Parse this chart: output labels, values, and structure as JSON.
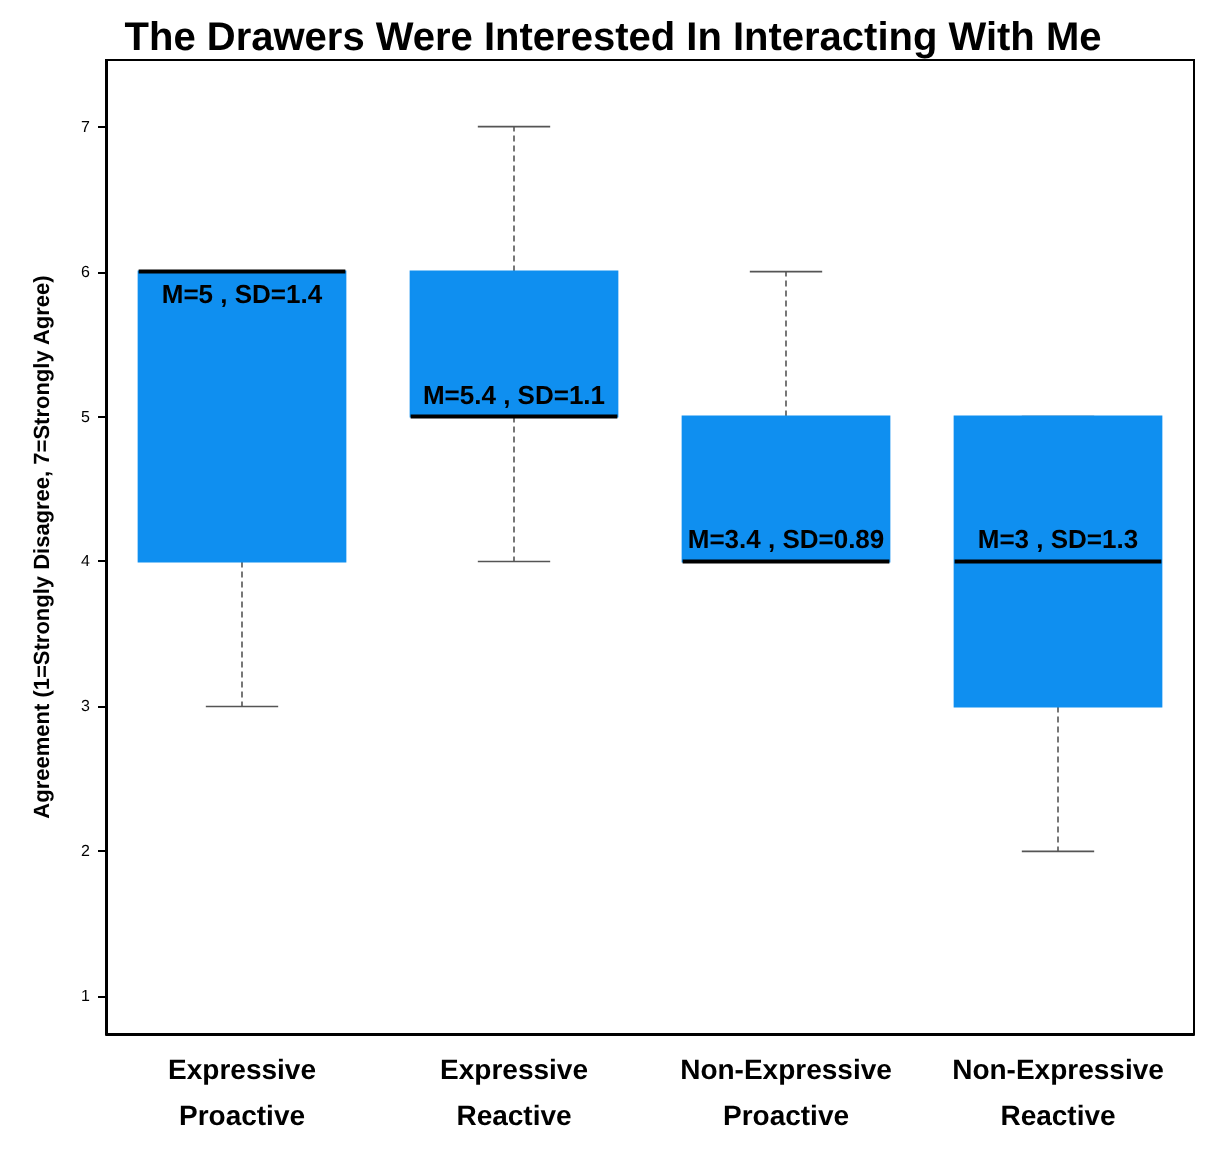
{
  "chart_data": {
    "type": "box",
    "title": "The Drawers Were Interested In Interacting With Me",
    "ylabel": "Agreement (1=Strongly Disagree, 7=Strongly Agree)",
    "categories": [
      "Expressive\nProactive",
      "Expressive\nReactive",
      "Non-Expressive\nProactive",
      "Non-Expressive\nReactive"
    ],
    "color": "#0f8ff0",
    "boxes": [
      {
        "low": 3,
        "q1": 4,
        "median": 6,
        "q3": 6,
        "high": 6
      },
      {
        "low": 4,
        "q1": 5,
        "median": 5,
        "q3": 6,
        "high": 7
      },
      {
        "low": 4,
        "q1": 4,
        "median": 4,
        "q3": 5,
        "high": 6
      },
      {
        "low": 2,
        "q1": 3,
        "median": 4,
        "q3": 5,
        "high": 5
      }
    ],
    "ylim": [
      0.74,
      7.46
    ],
    "yticks": [
      1,
      2,
      3,
      4,
      5,
      6,
      7
    ],
    "grid": false,
    "annotations": [
      "M=5 , SD=1.4",
      "M=5.4 , SD=1.1",
      "M=3.4 , SD=0.89",
      "M=3 , SD=1.3"
    ]
  }
}
